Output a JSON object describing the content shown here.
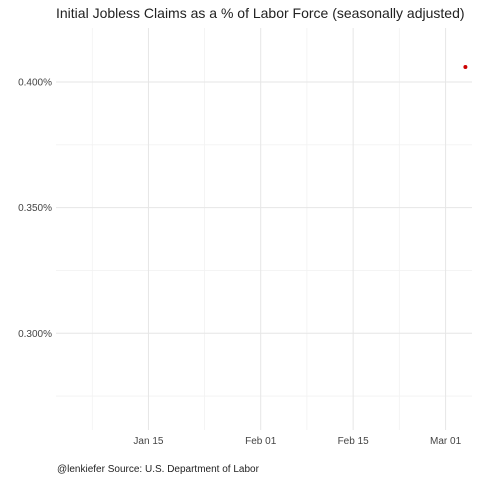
{
  "chart_data": {
    "type": "scatter",
    "title": "Initial Jobless Claims as a % of Labor Force (seasonally adjusted)",
    "xlabel": "",
    "ylabel": "",
    "caption": "@lenkiefer Source: U.S. Department of Labor",
    "x_ticks": [
      "Jan 15",
      "Feb 01",
      "Feb 15",
      "Mar 01"
    ],
    "y_ticks": [
      "0.300%",
      "0.350%",
      "0.400%"
    ],
    "y_tick_values": [
      0.3,
      0.35,
      0.4
    ],
    "x_tick_days": [
      15,
      32,
      46,
      60
    ],
    "xlim_days": [
      1,
      64
    ],
    "ylim": [
      0.2615,
      0.4215
    ],
    "grid": true,
    "points": [
      {
        "x": "Mar 04",
        "x_day": 63,
        "y": 0.406,
        "color": "#cc0000"
      }
    ]
  }
}
